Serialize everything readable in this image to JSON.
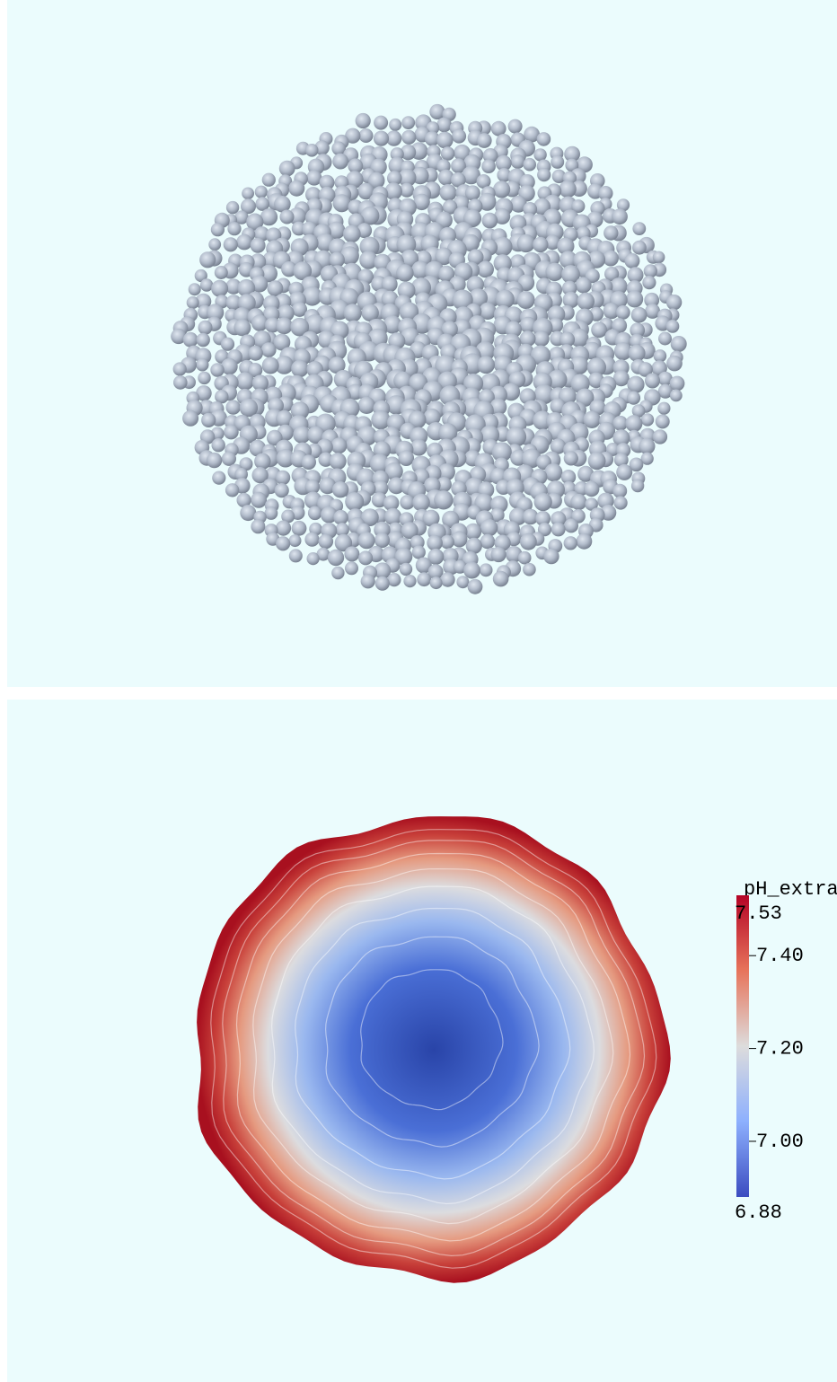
{
  "colorbar": {
    "title": "pH_extra",
    "range": [
      6.88,
      7.53
    ],
    "ticks": [
      {
        "value": 7.4,
        "label": "7.40"
      },
      {
        "value": 7.2,
        "label": "7.20"
      },
      {
        "value": 7.0,
        "label": "7.00"
      }
    ]
  }
}
